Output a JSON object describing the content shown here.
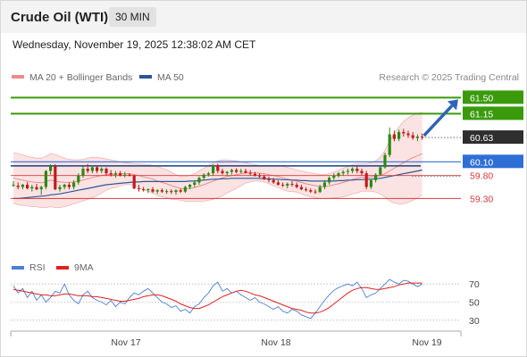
{
  "header": {
    "title": "Crude Oil (WTI)",
    "timeframe": "30 MIN",
    "timestamp": "Wednesday, November 19, 2025 12:38:02 AM CET"
  },
  "chart_data": [
    {
      "type": "line",
      "title": "Crude Oil (WTI)",
      "legend": [
        {
          "name": "MA 20 + Bollinger Bands",
          "color": "#f08a8a"
        },
        {
          "name": "MA 50",
          "color": "#2b5797"
        }
      ],
      "legend_position": "top-left",
      "credit": "Research © 2025 Trading Central",
      "x_ticks": [
        "Nov 17",
        "Nov 18",
        "Nov 19"
      ],
      "ylim": [
        58.1,
        61.8
      ],
      "candles": [
        [
          59.6,
          59.68,
          59.55,
          59.6
        ],
        [
          59.58,
          59.65,
          59.5,
          59.55
        ],
        [
          59.55,
          59.62,
          59.5,
          59.6
        ],
        [
          59.6,
          59.66,
          59.5,
          59.52
        ],
        [
          59.52,
          59.6,
          59.45,
          59.55
        ],
        [
          59.55,
          59.62,
          59.48,
          59.5
        ],
        [
          59.5,
          59.58,
          59.38,
          59.55
        ],
        [
          59.55,
          59.92,
          59.5,
          59.9
        ],
        [
          59.9,
          60.05,
          59.82,
          60.0
        ],
        [
          60.0,
          60.05,
          59.48,
          59.5
        ],
        [
          59.5,
          59.6,
          59.45,
          59.55
        ],
        [
          59.55,
          59.62,
          59.5,
          59.6
        ],
        [
          59.6,
          59.65,
          59.5,
          59.55
        ],
        [
          59.55,
          59.7,
          59.5,
          59.65
        ],
        [
          59.65,
          59.85,
          59.6,
          59.8
        ],
        [
          59.8,
          60.0,
          59.75,
          59.95
        ],
        [
          59.95,
          60.05,
          59.85,
          59.9
        ],
        [
          59.9,
          60.02,
          59.85,
          59.98
        ],
        [
          59.98,
          60.0,
          59.85,
          59.9
        ],
        [
          59.9,
          59.98,
          59.85,
          59.95
        ],
        [
          59.95,
          59.98,
          59.8,
          59.85
        ],
        [
          59.85,
          59.92,
          59.78,
          59.82
        ],
        [
          59.82,
          59.9,
          59.75,
          59.85
        ],
        [
          59.85,
          59.9,
          59.78,
          59.8
        ],
        [
          59.8,
          59.88,
          59.76,
          59.82
        ],
        [
          59.82,
          59.85,
          59.78,
          59.8
        ],
        [
          59.8,
          59.82,
          59.5,
          59.52
        ],
        [
          59.52,
          59.6,
          59.45,
          59.5
        ],
        [
          59.5,
          59.55,
          59.45,
          59.48
        ],
        [
          59.48,
          59.52,
          59.42,
          59.5
        ],
        [
          59.5,
          59.55,
          59.42,
          59.45
        ],
        [
          59.45,
          59.5,
          59.4,
          59.48
        ],
        [
          59.48,
          59.52,
          59.42,
          59.45
        ],
        [
          59.45,
          59.5,
          59.4,
          59.46
        ],
        [
          59.46,
          59.5,
          59.4,
          59.44
        ],
        [
          59.44,
          59.5,
          59.38,
          59.48
        ],
        [
          59.48,
          59.52,
          59.42,
          59.45
        ],
        [
          59.45,
          59.58,
          59.42,
          59.55
        ],
        [
          59.55,
          59.62,
          59.5,
          59.6
        ],
        [
          59.6,
          59.7,
          59.55,
          59.65
        ],
        [
          59.65,
          59.78,
          59.6,
          59.75
        ],
        [
          59.75,
          59.85,
          59.7,
          59.82
        ],
        [
          59.82,
          59.88,
          59.78,
          59.85
        ],
        [
          59.85,
          60.05,
          59.8,
          60.02
        ],
        [
          60.02,
          60.06,
          59.85,
          59.9
        ],
        [
          59.9,
          59.95,
          59.82,
          59.85
        ],
        [
          59.85,
          59.9,
          59.8,
          59.88
        ],
        [
          59.88,
          59.95,
          59.82,
          59.92
        ],
        [
          59.92,
          59.96,
          59.85,
          59.88
        ],
        [
          59.88,
          59.95,
          59.85,
          59.9
        ],
        [
          59.9,
          59.95,
          59.84,
          59.86
        ],
        [
          59.86,
          59.92,
          59.8,
          59.84
        ],
        [
          59.84,
          59.88,
          59.78,
          59.8
        ],
        [
          59.8,
          59.85,
          59.75,
          59.78
        ],
        [
          59.78,
          59.82,
          59.7,
          59.72
        ],
        [
          59.72,
          59.78,
          59.65,
          59.7
        ],
        [
          59.7,
          59.75,
          59.62,
          59.65
        ],
        [
          59.65,
          59.7,
          59.58,
          59.6
        ],
        [
          59.6,
          59.65,
          59.55,
          59.58
        ],
        [
          59.58,
          59.65,
          59.52,
          59.62
        ],
        [
          59.62,
          59.68,
          59.56,
          59.6
        ],
        [
          59.6,
          59.65,
          59.52,
          59.55
        ],
        [
          59.55,
          59.6,
          59.48,
          59.5
        ],
        [
          59.5,
          59.55,
          59.45,
          59.48
        ],
        [
          59.48,
          59.52,
          59.42,
          59.45
        ],
        [
          59.45,
          59.5,
          59.4,
          59.44
        ],
        [
          59.44,
          59.6,
          59.42,
          59.55
        ],
        [
          59.55,
          59.7,
          59.5,
          59.65
        ],
        [
          59.65,
          59.78,
          59.6,
          59.75
        ],
        [
          59.75,
          59.85,
          59.7,
          59.8
        ],
        [
          59.8,
          59.88,
          59.75,
          59.85
        ],
        [
          59.85,
          59.92,
          59.8,
          59.88
        ],
        [
          59.88,
          59.95,
          59.82,
          59.9
        ],
        [
          59.9,
          59.98,
          59.85,
          59.95
        ],
        [
          59.95,
          60.0,
          59.85,
          59.9
        ],
        [
          59.9,
          59.95,
          59.8,
          59.85
        ],
        [
          59.85,
          59.9,
          59.5,
          59.55
        ],
        [
          59.55,
          59.72,
          59.5,
          59.7
        ],
        [
          59.7,
          59.85,
          59.65,
          59.82
        ],
        [
          59.82,
          60.0,
          59.8,
          59.98
        ],
        [
          59.98,
          60.3,
          59.95,
          60.25
        ],
        [
          60.25,
          60.85,
          60.2,
          60.7
        ],
        [
          60.7,
          60.78,
          60.55,
          60.6
        ],
        [
          60.6,
          60.8,
          60.55,
          60.75
        ],
        [
          60.75,
          60.82,
          60.65,
          60.72
        ],
        [
          60.72,
          60.78,
          60.62,
          60.68
        ],
        [
          60.68,
          60.75,
          60.58,
          60.62
        ],
        [
          60.62,
          60.7,
          60.55,
          60.65
        ],
        [
          60.65,
          60.72,
          60.58,
          60.63
        ]
      ],
      "ma20": [
        59.75,
        59.72,
        59.7,
        59.68,
        59.66,
        59.65,
        59.64,
        59.66,
        59.7,
        59.68,
        59.66,
        59.65,
        59.65,
        59.66,
        59.68,
        59.7,
        59.73,
        59.76,
        59.78,
        59.8,
        59.82,
        59.83,
        59.83,
        59.84,
        59.84,
        59.84,
        59.82,
        59.8,
        59.77,
        59.75,
        59.72,
        59.68,
        59.65,
        59.62,
        59.58,
        59.55,
        59.52,
        59.51,
        59.52,
        59.54,
        59.57,
        59.6,
        59.64,
        59.68,
        59.72,
        59.75,
        59.78,
        59.8,
        59.82,
        59.84,
        59.86,
        59.86,
        59.86,
        59.85,
        59.84,
        59.82,
        59.8,
        59.78,
        59.75,
        59.72,
        59.7,
        59.68,
        59.65,
        59.62,
        59.6,
        59.58,
        59.56,
        59.56,
        59.57,
        59.6,
        59.62,
        59.65,
        59.68,
        59.72,
        59.74,
        59.76,
        59.76,
        59.77,
        59.78,
        59.8,
        59.84,
        59.9,
        59.96,
        60.02,
        60.08,
        60.14,
        60.19,
        60.23,
        60.28
      ],
      "bb_upper": [
        60.3,
        60.28,
        60.25,
        60.22,
        60.2,
        60.18,
        60.18,
        60.22,
        60.28,
        60.26,
        60.22,
        60.18,
        60.15,
        60.14,
        60.14,
        60.15,
        60.18,
        60.2,
        60.2,
        60.18,
        60.16,
        60.14,
        60.12,
        60.1,
        60.08,
        60.07,
        60.06,
        60.06,
        60.05,
        60.04,
        60.02,
        60.0,
        59.96,
        59.92,
        59.88,
        59.82,
        59.78,
        59.78,
        59.8,
        59.84,
        59.9,
        59.96,
        60.02,
        60.08,
        60.12,
        60.14,
        60.14,
        60.13,
        60.12,
        60.1,
        60.08,
        60.06,
        60.04,
        60.02,
        60.02,
        60.02,
        60.02,
        60.02,
        60.0,
        59.98,
        59.95,
        59.92,
        59.9,
        59.88,
        59.86,
        59.84,
        59.82,
        59.82,
        59.84,
        59.88,
        59.92,
        59.96,
        60.0,
        60.04,
        60.06,
        60.06,
        60.06,
        60.08,
        60.12,
        60.2,
        60.35,
        60.55,
        60.72,
        60.86,
        60.98,
        61.06,
        61.12,
        61.15,
        61.18
      ],
      "bb_lower": [
        59.2,
        59.16,
        59.15,
        59.14,
        59.12,
        59.12,
        59.1,
        59.1,
        59.12,
        59.1,
        59.1,
        59.12,
        59.15,
        59.18,
        59.22,
        59.25,
        59.28,
        59.32,
        59.36,
        59.42,
        59.48,
        59.52,
        59.54,
        59.58,
        59.6,
        59.61,
        59.58,
        59.54,
        59.49,
        59.46,
        59.42,
        59.36,
        59.34,
        59.32,
        59.28,
        59.28,
        59.26,
        59.24,
        59.24,
        59.24,
        59.24,
        59.24,
        59.26,
        59.28,
        59.32,
        59.36,
        59.42,
        59.47,
        59.52,
        59.58,
        59.64,
        59.66,
        59.68,
        59.68,
        59.66,
        59.62,
        59.58,
        59.54,
        59.5,
        59.46,
        59.45,
        59.44,
        59.4,
        59.36,
        59.34,
        59.32,
        59.3,
        59.3,
        59.3,
        59.32,
        59.32,
        59.34,
        59.36,
        59.4,
        59.42,
        59.46,
        59.46,
        59.46,
        59.44,
        59.4,
        59.33,
        59.25,
        59.2,
        59.18,
        59.18,
        59.22,
        59.26,
        59.31,
        59.38
      ],
      "ma50": [
        59.3,
        59.3,
        59.31,
        59.32,
        59.33,
        59.34,
        59.35,
        59.36,
        59.38,
        59.39,
        59.4,
        59.42,
        59.44,
        59.46,
        59.48,
        59.5,
        59.52,
        59.54,
        59.56,
        59.58,
        59.6,
        59.61,
        59.62,
        59.63,
        59.64,
        59.65,
        59.66,
        59.66,
        59.67,
        59.67,
        59.67,
        59.67,
        59.67,
        59.67,
        59.67,
        59.67,
        59.67,
        59.67,
        59.68,
        59.68,
        59.69,
        59.7,
        59.71,
        59.72,
        59.72,
        59.73,
        59.73,
        59.74,
        59.74,
        59.74,
        59.74,
        59.74,
        59.74,
        59.74,
        59.73,
        59.73,
        59.72,
        59.72,
        59.71,
        59.71,
        59.7,
        59.7,
        59.69,
        59.69,
        59.68,
        59.68,
        59.68,
        59.68,
        59.68,
        59.68,
        59.69,
        59.69,
        59.7,
        59.7,
        59.71,
        59.71,
        59.72,
        59.72,
        59.73,
        59.74,
        59.76,
        59.78,
        59.8,
        59.82,
        59.84,
        59.86,
        59.88,
        59.9,
        59.92
      ],
      "levels": [
        {
          "value": 61.5,
          "label": "61.50",
          "role": "target",
          "color": "#3a9a0c"
        },
        {
          "value": 61.15,
          "label": "61.15",
          "role": "target",
          "color": "#3a9a0c"
        },
        {
          "value": 60.63,
          "label": "60.63",
          "role": "last-price",
          "color": "#2e2e2e"
        },
        {
          "value": 60.1,
          "label": "60.10",
          "role": "pivot",
          "color": "#2e6fd6"
        },
        {
          "value": 59.8,
          "label": "59.80",
          "role": "support",
          "color": "#d63a3a"
        },
        {
          "value": 59.3,
          "label": "59.30",
          "role": "support",
          "color": "#d63a3a"
        }
      ],
      "arrow": {
        "from_index": 88,
        "to_value": 61.5,
        "color": "#2e63b8"
      }
    },
    {
      "type": "line",
      "legend": [
        {
          "name": "RSI",
          "color": "#4a7fd6"
        },
        {
          "name": "9MA",
          "color": "#e02020"
        }
      ],
      "legend_position": "top-left",
      "ylim": [
        20,
        80
      ],
      "y_ticks": [
        70,
        50,
        30
      ],
      "rsi": [
        68,
        60,
        65,
        55,
        62,
        52,
        58,
        50,
        55,
        62,
        60,
        70,
        58,
        52,
        48,
        58,
        62,
        55,
        52,
        50,
        47,
        52,
        45,
        50,
        48,
        55,
        60,
        58,
        62,
        65,
        60,
        55,
        50,
        48,
        44,
        46,
        40,
        42,
        38,
        45,
        48,
        55,
        60,
        68,
        72,
        62,
        65,
        60,
        62,
        58,
        55,
        52,
        55,
        50,
        48,
        45,
        42,
        45,
        40,
        38,
        42,
        40,
        36,
        34,
        32,
        38,
        45,
        52,
        58,
        63,
        66,
        68,
        70,
        68,
        72,
        65,
        55,
        58,
        60,
        65,
        70,
        75,
        72,
        70,
        74,
        73,
        70,
        67,
        70
      ],
      "ma9": [
        64,
        63,
        62,
        61,
        60,
        59,
        58,
        58,
        57,
        57,
        58,
        59,
        59,
        58,
        57,
        57,
        57,
        56,
        56,
        55,
        54,
        53,
        52,
        51,
        51,
        52,
        53,
        54,
        56,
        57,
        58,
        58,
        57,
        55,
        53,
        51,
        48,
        46,
        44,
        43,
        43,
        45,
        47,
        50,
        53,
        56,
        58,
        60,
        62,
        63,
        62,
        60,
        58,
        57,
        55,
        53,
        51,
        49,
        47,
        45,
        43,
        42,
        41,
        39,
        38,
        38,
        39,
        41,
        44,
        48,
        52,
        56,
        60,
        63,
        65,
        66,
        66,
        65,
        64,
        64,
        65,
        66,
        67,
        69,
        70,
        71,
        71,
        71,
        71
      ]
    }
  ]
}
